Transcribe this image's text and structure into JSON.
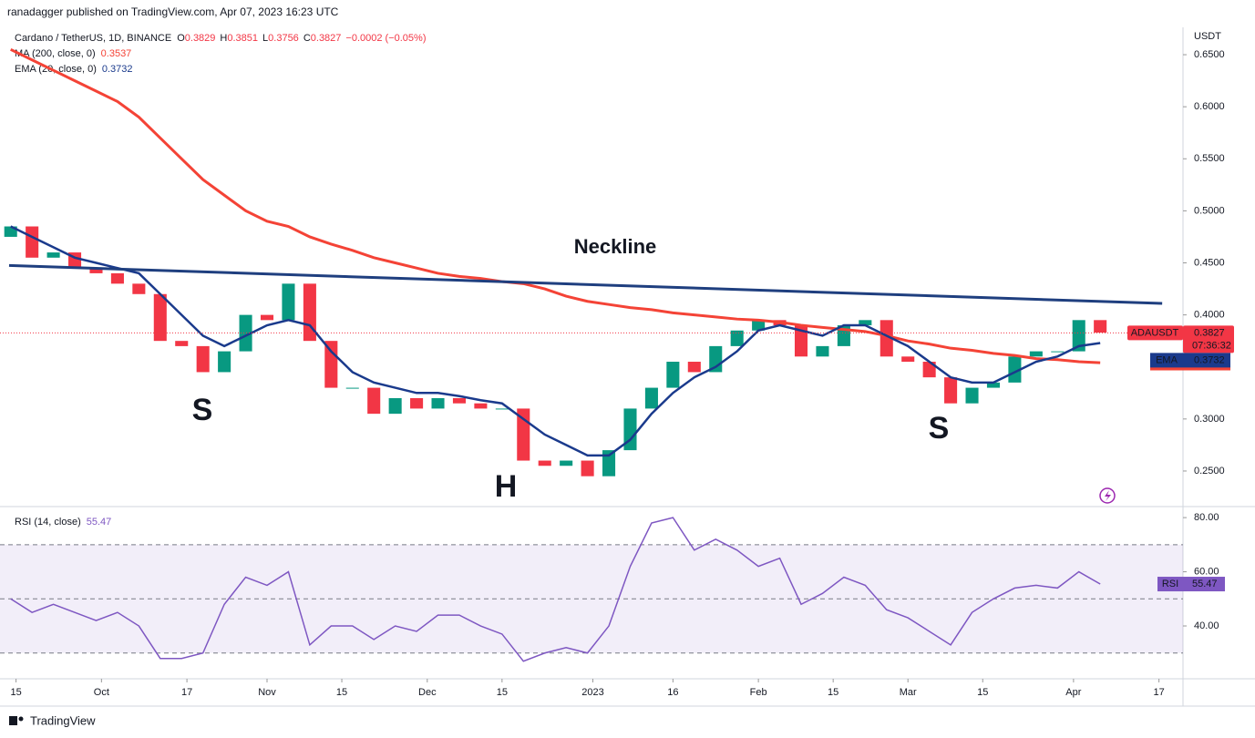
{
  "header": {
    "published": "ranadagger published on TradingView.com, Apr 07, 2023 16:23 UTC"
  },
  "chart_data": [
    {
      "type": "candlestick",
      "title": "Cardano / TetherUS, 1D, BINANCE",
      "symbol": "ADAUSDT",
      "countdown": "07:36:32",
      "unit": "USDT",
      "quote": {
        "open_label": "O",
        "open": 0.3829,
        "high_label": "H",
        "high": 0.3851,
        "low_label": "L",
        "low": 0.3756,
        "close_label": "C",
        "close": 0.3827,
        "change": "−0.0002 (−0.05%)"
      },
      "up_color": "#089981",
      "down_color": "#f23645",
      "x": [
        2,
        6,
        10,
        14,
        18,
        22,
        26,
        30,
        34,
        38,
        42,
        46,
        50,
        54,
        58,
        62,
        66,
        70,
        74,
        78,
        82,
        86,
        90,
        94,
        98,
        102,
        106,
        110,
        114,
        118,
        122,
        126,
        130,
        134,
        138,
        142,
        146,
        150,
        154,
        158,
        162,
        166,
        170,
        174,
        178,
        182,
        186,
        190,
        194,
        198,
        202,
        206
      ],
      "open": [
        0.475,
        0.485,
        0.455,
        0.46,
        0.445,
        0.44,
        0.43,
        0.42,
        0.375,
        0.37,
        0.345,
        0.365,
        0.4,
        0.395,
        0.43,
        0.375,
        0.33,
        0.33,
        0.305,
        0.32,
        0.31,
        0.32,
        0.315,
        0.31,
        0.31,
        0.26,
        0.255,
        0.26,
        0.245,
        0.27,
        0.31,
        0.33,
        0.355,
        0.345,
        0.37,
        0.385,
        0.395,
        0.39,
        0.36,
        0.37,
        0.39,
        0.395,
        0.36,
        0.355,
        0.34,
        0.315,
        0.33,
        0.335,
        0.36,
        0.365,
        0.365,
        0.395
      ],
      "close": [
        0.485,
        0.455,
        0.46,
        0.445,
        0.44,
        0.43,
        0.42,
        0.375,
        0.37,
        0.345,
        0.365,
        0.4,
        0.395,
        0.43,
        0.375,
        0.33,
        0.33,
        0.305,
        0.32,
        0.31,
        0.32,
        0.315,
        0.31,
        0.31,
        0.26,
        0.255,
        0.26,
        0.245,
        0.27,
        0.31,
        0.33,
        0.355,
        0.345,
        0.37,
        0.385,
        0.395,
        0.39,
        0.36,
        0.37,
        0.39,
        0.395,
        0.36,
        0.355,
        0.34,
        0.315,
        0.33,
        0.335,
        0.36,
        0.365,
        0.365,
        0.395,
        0.383
      ],
      "series": [
        {
          "name": "MA (200, close, 0)",
          "tag": "MA",
          "last": 0.3537,
          "color": "#f44336",
          "values": [
            0.655,
            0.645,
            0.635,
            0.625,
            0.615,
            0.605,
            0.59,
            0.57,
            0.55,
            0.53,
            0.515,
            0.5,
            0.49,
            0.485,
            0.475,
            0.468,
            0.462,
            0.455,
            0.45,
            0.445,
            0.44,
            0.437,
            0.435,
            0.432,
            0.43,
            0.425,
            0.418,
            0.413,
            0.41,
            0.407,
            0.405,
            0.402,
            0.4,
            0.398,
            0.396,
            0.395,
            0.393,
            0.39,
            0.388,
            0.386,
            0.384,
            0.38,
            0.375,
            0.372,
            0.368,
            0.366,
            0.363,
            0.361,
            0.358,
            0.357,
            0.355,
            0.354
          ]
        },
        {
          "name": "EMA (20, close, 0)",
          "tag": "EMA",
          "last": 0.3732,
          "color": "#1a3a8c",
          "values": [
            0.485,
            0.475,
            0.465,
            0.455,
            0.45,
            0.445,
            0.44,
            0.42,
            0.4,
            0.38,
            0.37,
            0.38,
            0.39,
            0.395,
            0.39,
            0.365,
            0.345,
            0.335,
            0.33,
            0.325,
            0.325,
            0.322,
            0.318,
            0.315,
            0.3,
            0.285,
            0.275,
            0.265,
            0.265,
            0.28,
            0.305,
            0.325,
            0.34,
            0.35,
            0.365,
            0.385,
            0.39,
            0.385,
            0.38,
            0.39,
            0.39,
            0.38,
            0.37,
            0.355,
            0.34,
            0.335,
            0.335,
            0.345,
            0.355,
            0.36,
            0.37,
            0.373
          ]
        }
      ],
      "neckline": {
        "label": "Neckline",
        "color": "#1f3f7f",
        "x": [
          1.7,
          217.6
        ],
        "values": [
          0.4475,
          0.411
        ]
      },
      "annotations": [
        "S",
        "H",
        "S"
      ],
      "annotation_color": "#0b8a76",
      "xlim": [
        0,
        221.5
      ],
      "xticks": [
        {
          "value": 3,
          "label": "15"
        },
        {
          "value": 19,
          "label": "Oct"
        },
        {
          "value": 35,
          "label": "17"
        },
        {
          "value": 50,
          "label": "Nov"
        },
        {
          "value": 64,
          "label": "15"
        },
        {
          "value": 80,
          "label": "Dec"
        },
        {
          "value": 94,
          "label": "15"
        },
        {
          "value": 111,
          "label": "2023"
        },
        {
          "value": 126,
          "label": "16"
        },
        {
          "value": 142,
          "label": "Feb"
        },
        {
          "value": 156,
          "label": "15"
        },
        {
          "value": 170,
          "label": "Mar"
        },
        {
          "value": 184,
          "label": "15"
        },
        {
          "value": 201,
          "label": "Apr"
        },
        {
          "value": 217,
          "label": "17"
        }
      ],
      "ylim": [
        0.2167,
        0.6763
      ],
      "yticks": [
        {
          "value": 0.25,
          "label": "0.2500"
        },
        {
          "value": 0.3,
          "label": "0.3000"
        },
        {
          "value": 0.35,
          "label": "0.3500"
        },
        {
          "value": 0.4,
          "label": "0.4000"
        },
        {
          "value": 0.45,
          "label": "0.4500"
        },
        {
          "value": 0.5,
          "label": "0.5000"
        },
        {
          "value": 0.55,
          "label": "0.5500"
        },
        {
          "value": 0.6,
          "label": "0.6000"
        },
        {
          "value": 0.65,
          "label": "0.6500"
        }
      ]
    },
    {
      "type": "line",
      "name": "RSI (14, close)",
      "tag": "RSI",
      "last": 55.47,
      "color": "#7e57c2",
      "values": [
        50,
        45,
        48,
        45,
        42,
        45,
        40,
        28,
        28,
        30,
        48,
        58,
        55,
        60,
        33,
        40,
        40,
        35,
        40,
        38,
        44,
        44,
        40,
        37,
        27,
        30,
        32,
        30,
        40,
        62,
        78,
        80,
        68,
        72,
        68,
        62,
        65,
        48,
        52,
        58,
        55,
        46,
        43,
        38,
        33,
        45,
        50,
        54,
        55,
        54,
        60,
        55.47
      ],
      "levels": [
        30,
        50,
        70
      ],
      "ylim": [
        20.5,
        83.4
      ],
      "yticks": [
        {
          "value": 40,
          "label": "40.00"
        },
        {
          "value": 60,
          "label": "60.00"
        },
        {
          "value": 80,
          "label": "80.00"
        }
      ]
    }
  ],
  "footer": {
    "brand": "TradingView"
  }
}
